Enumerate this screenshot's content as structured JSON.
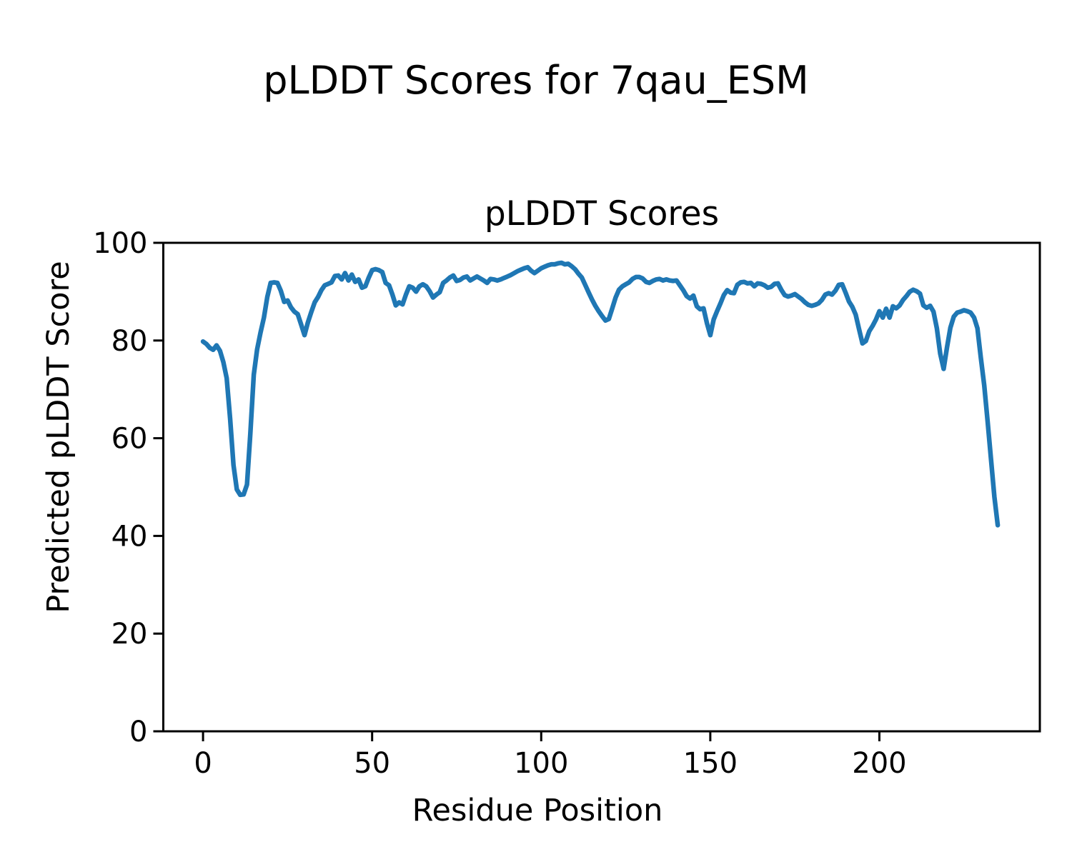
{
  "figure": {
    "suptitle": "pLDDT Scores for 7qau_ESM",
    "axes_title": "pLDDT Scores",
    "xlabel": "Residue Position",
    "ylabel": "Predicted pLDDT Score",
    "background_color": "#ffffff",
    "line_color": "#1f77b4",
    "spine_color": "#000000",
    "text_color": "#000000"
  },
  "chart_data": {
    "type": "line",
    "title": "pLDDT Scores",
    "xlabel": "Residue Position",
    "ylabel": "Predicted pLDDT Score",
    "series_name": "pLDDT score per residue",
    "grid": false,
    "legend_position": "none",
    "x_start": 0,
    "x_step": 1,
    "xticks": [
      0,
      50,
      100,
      150,
      200
    ],
    "yticks": [
      0,
      20,
      40,
      60,
      80,
      100
    ],
    "xlim": [
      -11.75,
      247.45
    ],
    "ylim": [
      0,
      100
    ],
    "values": [
      79.8,
      79.3,
      78.5,
      78.1,
      79.0,
      77.9,
      75.6,
      72.3,
      64.0,
      54.5,
      49.5,
      48.4,
      48.5,
      50.5,
      61.0,
      73.0,
      78.2,
      81.6,
      84.7,
      88.9,
      91.8,
      91.9,
      91.8,
      90.2,
      87.9,
      88.2,
      86.8,
      85.9,
      85.4,
      83.3,
      81.1,
      83.7,
      85.8,
      87.8,
      88.9,
      90.3,
      91.3,
      91.6,
      91.9,
      93.2,
      93.3,
      92.5,
      93.8,
      92.3,
      93.5,
      92.0,
      92.5,
      90.8,
      91.1,
      92.9,
      94.4,
      94.6,
      94.4,
      94.0,
      91.8,
      91.3,
      89.4,
      87.2,
      87.8,
      87.4,
      89.4,
      91.1,
      90.8,
      90.0,
      91.1,
      91.5,
      91.1,
      90.1,
      88.8,
      89.4,
      89.9,
      91.8,
      92.3,
      92.9,
      93.3,
      92.2,
      92.4,
      92.9,
      93.1,
      92.3,
      92.7,
      93.1,
      92.7,
      92.3,
      91.8,
      92.6,
      92.5,
      92.3,
      92.5,
      92.8,
      93.1,
      93.4,
      93.8,
      94.2,
      94.5,
      94.8,
      95.0,
      94.3,
      93.8,
      94.3,
      94.8,
      95.1,
      95.4,
      95.6,
      95.6,
      95.8,
      95.9,
      95.6,
      95.7,
      95.2,
      94.6,
      93.7,
      92.9,
      91.4,
      89.9,
      88.4,
      87.1,
      86.0,
      85.0,
      84.1,
      84.4,
      86.6,
      88.8,
      90.4,
      91.1,
      91.5,
      91.9,
      92.6,
      93.0,
      93.0,
      92.7,
      92.0,
      91.8,
      92.2,
      92.5,
      92.6,
      92.3,
      92.5,
      92.3,
      92.2,
      92.3,
      91.3,
      90.3,
      89.1,
      88.6,
      89.2,
      87.0,
      86.4,
      86.6,
      83.6,
      81.1,
      84.3,
      86.0,
      87.6,
      89.3,
      90.3,
      89.8,
      89.7,
      91.4,
      91.9,
      92.0,
      91.7,
      91.8,
      91.1,
      91.7,
      91.6,
      91.3,
      90.8,
      91.0,
      91.6,
      91.7,
      90.4,
      89.3,
      89.0,
      89.2,
      89.5,
      89.0,
      88.5,
      87.8,
      87.3,
      87.1,
      87.3,
      87.6,
      88.3,
      89.4,
      89.7,
      89.4,
      90.2,
      91.4,
      91.5,
      89.8,
      88.0,
      86.9,
      85.3,
      82.3,
      79.4,
      79.9,
      81.9,
      83.0,
      84.3,
      86.0,
      84.7,
      86.5,
      84.7,
      87.0,
      86.6,
      87.2,
      88.3,
      89.1,
      90.0,
      90.4,
      90.1,
      89.6,
      87.2,
      86.7,
      87.1,
      85.9,
      82.5,
      77.3,
      74.2,
      78.6,
      82.6,
      84.9,
      85.7,
      85.9,
      86.2,
      86.0,
      85.7,
      84.7,
      82.5,
      76.5,
      70.8,
      63.5,
      55.8,
      48.0,
      42.2
    ]
  }
}
